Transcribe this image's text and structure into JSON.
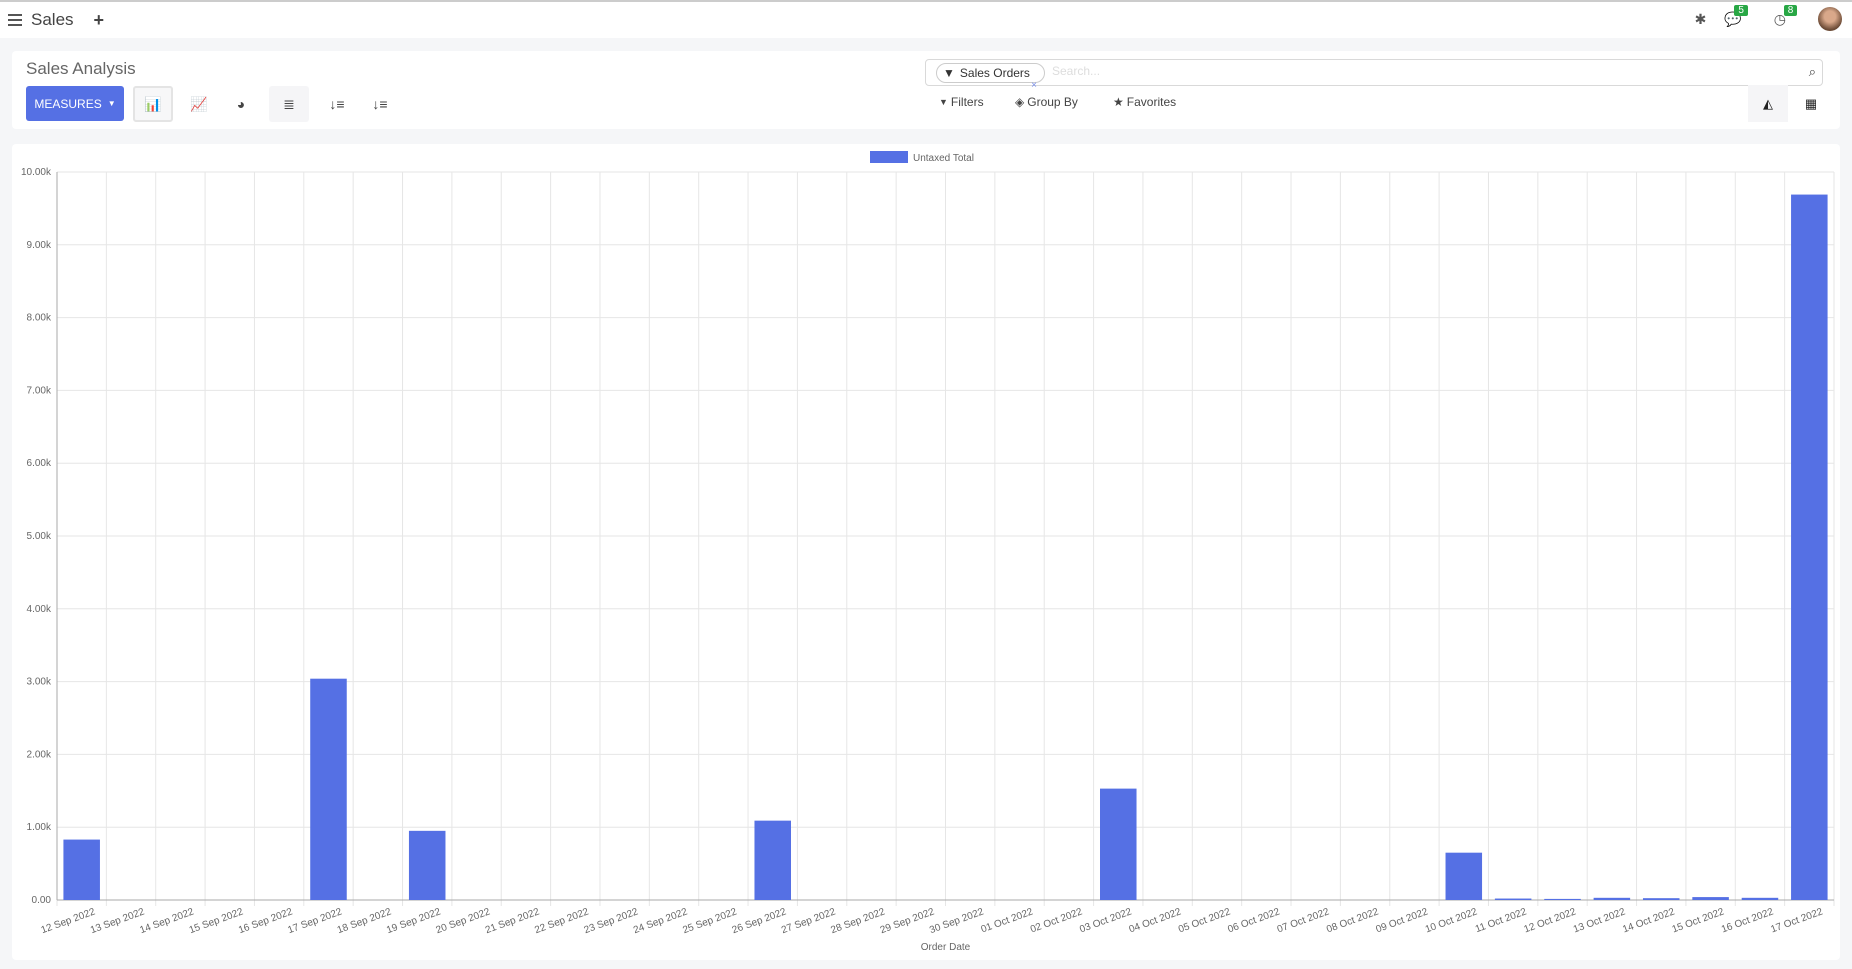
{
  "topbar": {
    "app": "Sales",
    "messages_count": "5",
    "activities_count": "8"
  },
  "panel": {
    "title": "Sales Analysis",
    "measures_label": "MEASURES",
    "search_facet": "Sales Orders",
    "search_placeholder": "Search...",
    "filters": "Filters",
    "group_by": "Group By",
    "favorites": "Favorites"
  },
  "colors": {
    "accent": "#5570e4",
    "badge": "#28a745"
  },
  "chart_data": {
    "type": "bar",
    "legend": [
      "Untaxed Total"
    ],
    "legend_placement": "top",
    "xlabel": "Order Date",
    "ylabel": "",
    "ylim": [
      0,
      10000
    ],
    "yticks": [
      "0.00",
      "1.00k",
      "2.00k",
      "3.00k",
      "4.00k",
      "5.00k",
      "6.00k",
      "7.00k",
      "8.00k",
      "9.00k",
      "10.00k"
    ],
    "grid": true,
    "categories": [
      "12 Sep 2022",
      "13 Sep 2022",
      "14 Sep 2022",
      "15 Sep 2022",
      "16 Sep 2022",
      "17 Sep 2022",
      "18 Sep 2022",
      "19 Sep 2022",
      "20 Sep 2022",
      "21 Sep 2022",
      "22 Sep 2022",
      "23 Sep 2022",
      "24 Sep 2022",
      "25 Sep 2022",
      "26 Sep 2022",
      "27 Sep 2022",
      "28 Sep 2022",
      "29 Sep 2022",
      "30 Sep 2022",
      "01 Oct 2022",
      "02 Oct 2022",
      "03 Oct 2022",
      "04 Oct 2022",
      "05 Oct 2022",
      "06 Oct 2022",
      "07 Oct 2022",
      "08 Oct 2022",
      "09 Oct 2022",
      "10 Oct 2022",
      "11 Oct 2022",
      "12 Oct 2022",
      "13 Oct 2022",
      "14 Oct 2022",
      "15 Oct 2022",
      "16 Oct 2022",
      "17 Oct 2022"
    ],
    "series": [
      {
        "name": "Untaxed Total",
        "color": "#5570e4",
        "values": [
          830,
          0,
          0,
          0,
          0,
          3040,
          0,
          950,
          0,
          0,
          0,
          0,
          0,
          0,
          1090,
          0,
          0,
          0,
          0,
          0,
          0,
          1530,
          0,
          0,
          0,
          0,
          0,
          0,
          650,
          20,
          15,
          30,
          25,
          40,
          30,
          9690
        ]
      }
    ]
  }
}
